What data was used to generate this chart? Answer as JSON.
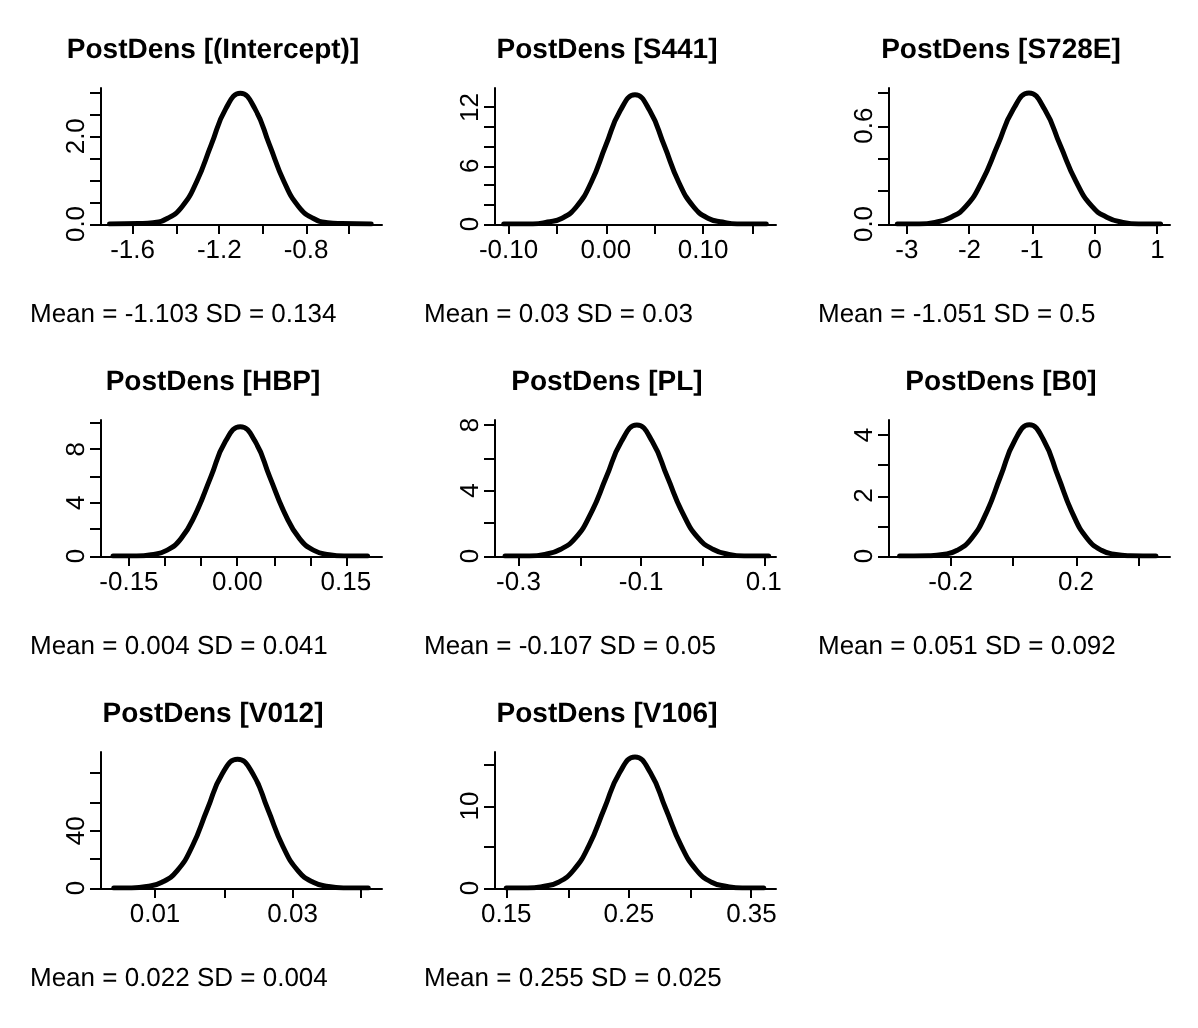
{
  "chart_data": [
    {
      "type": "line",
      "title": "PostDens [(Intercept)]",
      "annotations": [
        "Mean = -1.103 SD = 0.134"
      ],
      "x": [
        -1.706,
        -1.572,
        -1.505,
        -1.438,
        -1.371,
        -1.304,
        -1.237,
        -1.17,
        -1.103,
        -1.036,
        -0.969,
        -0.902,
        -0.835,
        -0.768,
        -0.701,
        -0.634,
        -0.5
      ],
      "values": [
        0,
        0.01,
        0.03,
        0.13,
        0.4,
        0.97,
        1.81,
        2.63,
        2.98,
        2.63,
        1.81,
        0.97,
        0.4,
        0.13,
        0.03,
        0.01,
        0
      ],
      "color": "#000000",
      "xlim": [
        -1.75,
        -0.45
      ],
      "xticks": [
        -1.6,
        {
          "value": -1.4,
          "label": null
        },
        -1.2,
        {
          "value": -1.0,
          "label": null
        },
        -0.8,
        {
          "value": -0.6,
          "label": null
        }
      ],
      "ylim": [
        0,
        3.1
      ],
      "yticks": [
        {
          "value": 0,
          "label": "0.0"
        },
        {
          "value": 0.5,
          "label": null
        },
        {
          "value": 1,
          "label": null
        },
        {
          "value": 1.5,
          "label": null
        },
        {
          "value": 2,
          "label": "2.0"
        },
        {
          "value": 2.5,
          "label": null
        },
        {
          "value": 3,
          "label": null
        }
      ]
    },
    {
      "type": "line",
      "title": "PostDens [S441]",
      "annotations": [
        "Mean = 0.03 SD = 0.03"
      ],
      "x": [
        -0.105,
        -0.075,
        -0.06,
        -0.045,
        -0.03,
        -0.015,
        0,
        0.015,
        0.03,
        0.045,
        0.06,
        0.075,
        0.09,
        0.105,
        0.12,
        0.135,
        0.165
      ],
      "values": [
        0,
        0,
        0.2,
        0.6,
        1.8,
        4.3,
        8.1,
        11.7,
        13.3,
        11.7,
        8.1,
        4.3,
        1.8,
        0.6,
        0.2,
        0,
        0
      ],
      "color": "#000000",
      "xlim": [
        -0.115,
        0.175
      ],
      "xticks": [
        {
          "value": -0.1,
          "label": "-0.10"
        },
        {
          "value": -0.05,
          "label": null
        },
        {
          "value": 0,
          "label": "0.00"
        },
        {
          "value": 0.05,
          "label": null
        },
        {
          "value": 0.1,
          "label": "0.10"
        },
        {
          "value": 0.15,
          "label": null
        }
      ],
      "ylim": [
        0,
        14
      ],
      "yticks": [
        0,
        {
          "value": 2,
          "label": null
        },
        {
          "value": 4,
          "label": null
        },
        6,
        {
          "value": 8,
          "label": null
        },
        {
          "value": 10,
          "label": null
        },
        12
      ]
    },
    {
      "type": "line",
      "title": "PostDens [S728E]",
      "annotations": [
        "Mean = -1.051 SD = 0.5"
      ],
      "x": [
        -3.151,
        -2.801,
        -2.551,
        -2.301,
        -2.051,
        -1.801,
        -1.551,
        -1.301,
        -1.051,
        -0.801,
        -0.551,
        -0.301,
        -0.051,
        0.199,
        0.449,
        0.699,
        1.049
      ],
      "values": [
        0,
        0,
        0.01,
        0.04,
        0.11,
        0.26,
        0.48,
        0.7,
        0.8,
        0.7,
        0.48,
        0.26,
        0.11,
        0.04,
        0.01,
        0,
        0
      ],
      "color": "#000000",
      "xlim": [
        -3.3,
        1.2
      ],
      "xticks": [
        -3,
        -2,
        -1,
        0,
        1
      ],
      "ylim": [
        0,
        0.83
      ],
      "yticks": [
        {
          "value": 0,
          "label": "0.0"
        },
        {
          "value": 0.2,
          "label": null
        },
        {
          "value": 0.4,
          "label": null
        },
        0.6,
        {
          "value": 0.8,
          "label": null
        }
      ]
    },
    {
      "type": "line",
      "title": "PostDens [HBP]",
      "annotations": [
        "Mean = 0.004 SD = 0.041"
      ],
      "x": [
        -0.172,
        -0.1395,
        -0.119,
        -0.0985,
        -0.078,
        -0.0575,
        -0.037,
        -0.0165,
        0.004,
        0.0245,
        0.045,
        0.0655,
        0.086,
        0.1065,
        0.127,
        0.1475,
        0.18
      ],
      "values": [
        0,
        0,
        0.1,
        0.4,
        1.3,
        3.2,
        5.9,
        8.6,
        9.7,
        8.6,
        5.9,
        3.2,
        1.3,
        0.4,
        0.1,
        0,
        0
      ],
      "color": "#000000",
      "xlim": [
        -0.19,
        0.2
      ],
      "xticks": [
        -0.15,
        {
          "value": -0.1,
          "label": null
        },
        {
          "value": -0.05,
          "label": null
        },
        {
          "value": 0,
          "label": "0.00"
        },
        {
          "value": 0.05,
          "label": null
        },
        {
          "value": 0.1,
          "label": null
        },
        0.15
      ],
      "ylim": [
        0,
        10.2
      ],
      "yticks": [
        0,
        {
          "value": 2,
          "label": null
        },
        4,
        {
          "value": 6,
          "label": null
        },
        8,
        {
          "value": 10,
          "label": null
        }
      ]
    },
    {
      "type": "line",
      "title": "PostDens [PL]",
      "annotations": [
        "Mean = -0.107 SD = 0.05"
      ],
      "x": [
        -0.322,
        -0.282,
        -0.257,
        -0.232,
        -0.207,
        -0.182,
        -0.157,
        -0.132,
        -0.107,
        -0.082,
        -0.057,
        -0.032,
        -0.007,
        0.018,
        0.043,
        0.068,
        0.108
      ],
      "values": [
        0,
        0,
        0.1,
        0.4,
        1.1,
        2.6,
        4.8,
        7,
        8,
        7,
        4.8,
        2.6,
        1.1,
        0.4,
        0.1,
        0,
        0
      ],
      "color": "#000000",
      "xlim": [
        -0.34,
        0.12
      ],
      "xticks": [
        -0.3,
        {
          "value": -0.2,
          "label": null
        },
        -0.1,
        {
          "value": 0,
          "label": null
        },
        0.1
      ],
      "ylim": [
        0,
        8.3
      ],
      "yticks": [
        0,
        {
          "value": 2,
          "label": null
        },
        4,
        {
          "value": 6,
          "label": null
        },
        8
      ]
    },
    {
      "type": "line",
      "title": "PostDens [B0]",
      "annotations": [
        "Mean = 0.051 SD = 0.092"
      ],
      "x": [
        -0.363,
        -0.271,
        -0.225,
        -0.179,
        -0.133,
        -0.087,
        -0.041,
        0.005,
        0.051,
        0.097,
        0.143,
        0.189,
        0.235,
        0.281,
        0.327,
        0.373,
        0.455
      ],
      "values": [
        0,
        0.01,
        0.05,
        0.19,
        0.59,
        1.41,
        2.63,
        3.83,
        4.34,
        3.83,
        2.63,
        1.41,
        0.59,
        0.19,
        0.05,
        0.01,
        0
      ],
      "color": "#000000",
      "xlim": [
        -0.4,
        0.5
      ],
      "xticks": [
        -0.2,
        {
          "value": 0,
          "label": null
        },
        0.2,
        {
          "value": 0.4,
          "label": null
        }
      ],
      "ylim": [
        0,
        4.5
      ],
      "yticks": [
        0,
        {
          "value": 1,
          "label": null
        },
        2,
        {
          "value": 3,
          "label": null
        },
        4
      ]
    },
    {
      "type": "line",
      "title": "PostDens [V012]",
      "annotations": [
        "Mean = 0.022 SD = 0.004"
      ],
      "x": [
        0.004,
        0.0066,
        0.0088,
        0.011,
        0.0132,
        0.0154,
        0.0176,
        0.0198,
        0.022,
        0.0242,
        0.0264,
        0.0286,
        0.0308,
        0.033,
        0.0352,
        0.0374,
        0.041
      ],
      "values": [
        0,
        0,
        1,
        4,
        12,
        29,
        55,
        80,
        90,
        80,
        55,
        29,
        12,
        4,
        1,
        0,
        0
      ],
      "color": "#000000",
      "xlim": [
        0.002,
        0.043
      ],
      "xticks": [
        0.01,
        {
          "value": 0.02,
          "label": null
        },
        0.03,
        {
          "value": 0.04,
          "label": null
        }
      ],
      "ylim": [
        0,
        95
      ],
      "yticks": [
        0,
        {
          "value": 20,
          "label": null
        },
        40,
        {
          "value": 60,
          "label": null
        },
        {
          "value": 80,
          "label": null
        }
      ]
    },
    {
      "type": "line",
      "title": "PostDens [V106]",
      "annotations": [
        "Mean = 0.255 SD = 0.025"
      ],
      "x": [
        0.15,
        0.1675,
        0.18,
        0.1925,
        0.205,
        0.2175,
        0.23,
        0.2425,
        0.255,
        0.2675,
        0.28,
        0.2925,
        0.305,
        0.3175,
        0.33,
        0.3425,
        0.36
      ],
      "values": [
        0,
        0,
        0.2,
        0.7,
        2.2,
        5.2,
        9.7,
        14.1,
        16,
        14.1,
        9.7,
        5.2,
        2.2,
        0.7,
        0.2,
        0,
        0
      ],
      "color": "#000000",
      "xlim": [
        0.14,
        0.37
      ],
      "xticks": [
        0.15,
        {
          "value": 0.2,
          "label": null
        },
        0.25,
        {
          "value": 0.3,
          "label": null
        },
        0.35
      ],
      "ylim": [
        0,
        16.6
      ],
      "yticks": [
        0,
        {
          "value": 5,
          "label": null
        },
        10,
        {
          "value": 15,
          "label": null
        }
      ]
    }
  ]
}
